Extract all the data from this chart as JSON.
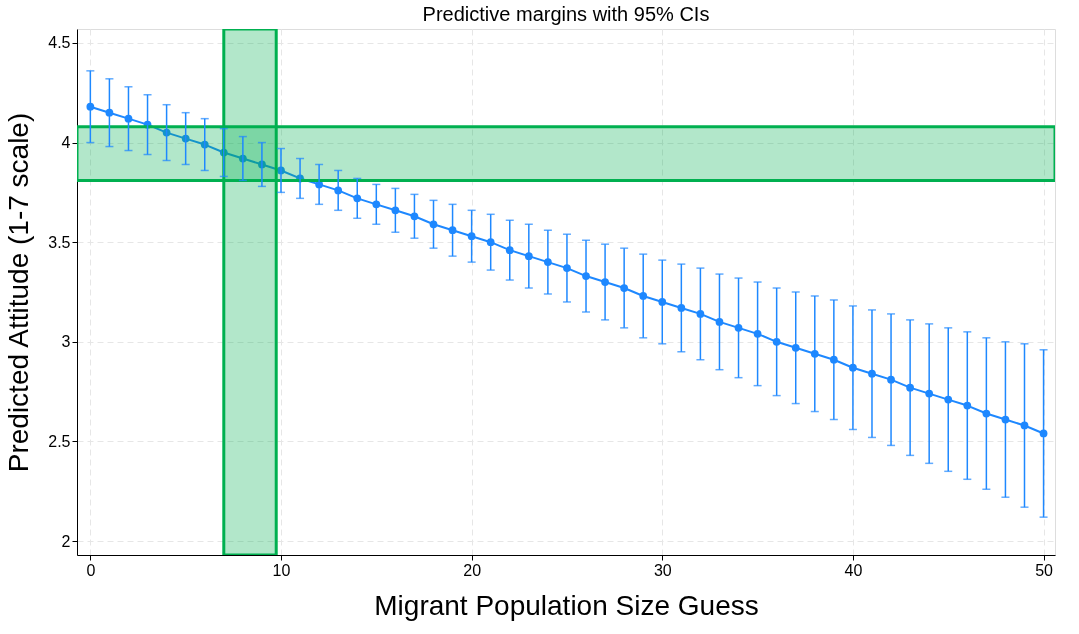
{
  "chart_data": {
    "type": "line",
    "title": "Predictive margins with 95% CIs",
    "xlabel": "Migrant Population Size Guess",
    "ylabel": "Predicted Attitude (1-7 scale)",
    "x": [
      0,
      1,
      2,
      3,
      4,
      5,
      6,
      7,
      8,
      9,
      10,
      11,
      12,
      13,
      14,
      15,
      16,
      17,
      18,
      19,
      20,
      21,
      22,
      23,
      24,
      25,
      26,
      27,
      28,
      29,
      30,
      31,
      32,
      33,
      34,
      35,
      36,
      37,
      38,
      39,
      40,
      41,
      42,
      43,
      44,
      45,
      46,
      47,
      48,
      49,
      50
    ],
    "series": [
      {
        "color": "#1e88ff",
        "values": [
          4.18,
          4.15,
          4.12,
          4.09,
          4.05,
          4.02,
          3.99,
          3.95,
          3.92,
          3.89,
          3.86,
          3.82,
          3.79,
          3.76,
          3.72,
          3.69,
          3.66,
          3.63,
          3.59,
          3.56,
          3.53,
          3.5,
          3.46,
          3.43,
          3.4,
          3.37,
          3.33,
          3.3,
          3.27,
          3.23,
          3.2,
          3.17,
          3.14,
          3.1,
          3.07,
          3.04,
          3.0,
          2.97,
          2.94,
          2.91,
          2.87,
          2.84,
          2.81,
          2.77,
          2.74,
          2.71,
          2.68,
          2.64,
          2.61,
          2.58,
          2.54
        ],
        "errors": [
          0.18,
          0.17,
          0.16,
          0.15,
          0.14,
          0.13,
          0.13,
          0.12,
          0.11,
          0.11,
          0.11,
          0.1,
          0.1,
          0.1,
          0.1,
          0.1,
          0.11,
          0.11,
          0.12,
          0.13,
          0.13,
          0.14,
          0.15,
          0.16,
          0.16,
          0.17,
          0.18,
          0.19,
          0.2,
          0.21,
          0.21,
          0.22,
          0.23,
          0.24,
          0.25,
          0.26,
          0.27,
          0.28,
          0.29,
          0.3,
          0.31,
          0.32,
          0.33,
          0.34,
          0.35,
          0.36,
          0.37,
          0.38,
          0.39,
          0.41,
          0.42
        ]
      }
    ],
    "xlim": [
      -0.7,
      50.6
    ],
    "xticks": [
      0,
      10,
      20,
      30,
      40,
      50
    ],
    "ylim": [
      1.93,
      4.57
    ],
    "yticks": [
      2,
      2.5,
      3,
      3.5,
      4,
      4.5
    ],
    "bands": [
      {
        "axis": "x",
        "from": 7,
        "to": 9.75,
        "color": "#00b050"
      },
      {
        "axis": "y",
        "from": 3.81,
        "to": 4.08,
        "color": "#00b050"
      }
    ],
    "grid": true,
    "marker": "circle",
    "line_style": "solid"
  }
}
